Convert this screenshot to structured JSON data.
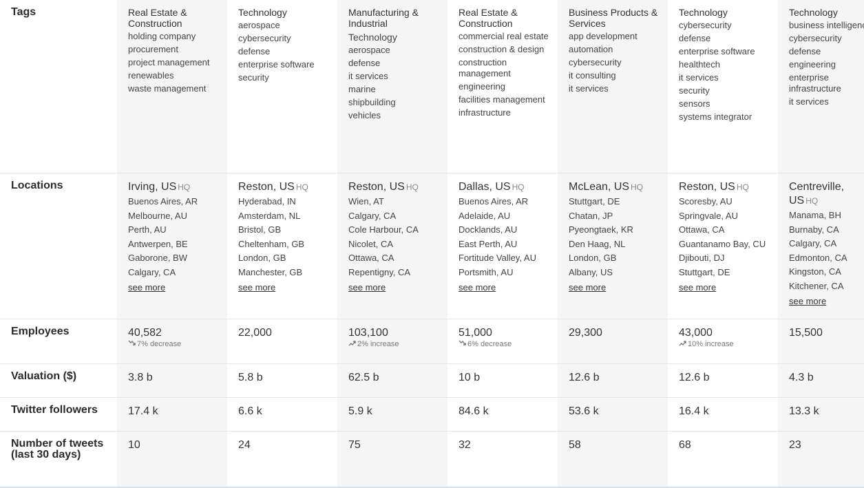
{
  "labels": {
    "tags": "Tags",
    "locations": "Locations",
    "employees": "Employees",
    "valuation": "Valuation ($)",
    "twitter": "Twitter followers",
    "tweets": "Number of tweets (last 30 days)"
  },
  "companies": [
    {
      "sector": "Real Estate & Construction",
      "tags": [
        "holding company",
        "procurement",
        "project management",
        "renewables",
        "waste management"
      ],
      "hq": "Irving, US",
      "hq_badge": "HQ",
      "locations": [
        "Buenos Aires, AR",
        "Melbourne, AU",
        "Perth, AU",
        "Antwerpen, BE",
        "Gaborone, BW",
        "Calgary, CA"
      ],
      "see_more": "see more",
      "employees": "40,582",
      "employees_trend": "7% decrease",
      "trend_dir": "down",
      "valuation": "3.8 b",
      "twitter": "17.4 k",
      "tweets": "10"
    },
    {
      "sector": "Technology",
      "tags": [
        "aerospace",
        "cybersecurity",
        "defense",
        "enterprise software",
        "security"
      ],
      "hq": "Reston, US",
      "hq_badge": "HQ",
      "locations": [
        "Hyderabad, IN",
        "Amsterdam, NL",
        "Bristol, GB",
        "Cheltenham, GB",
        "London, GB",
        "Manchester, GB"
      ],
      "see_more": "see more",
      "employees": "22,000",
      "employees_trend": "",
      "trend_dir": "",
      "valuation": "5.8 b",
      "twitter": "6.6 k",
      "tweets": "24"
    },
    {
      "sector": "Manufacturing & Industrial",
      "tags": [
        "Technology",
        "aerospace",
        "defense",
        "it services",
        "marine",
        "shipbuilding",
        "vehicles"
      ],
      "hq": "Reston, US",
      "hq_badge": "HQ",
      "locations": [
        "Wien, AT",
        "Calgary, CA",
        "Cole Harbour, CA",
        "Nicolet, CA",
        "Ottawa, CA",
        "Repentigny, CA"
      ],
      "see_more": "see more",
      "employees": "103,100",
      "employees_trend": "2% increase",
      "trend_dir": "up",
      "valuation": "62.5 b",
      "twitter": "5.9 k",
      "tweets": "75"
    },
    {
      "sector": "Real Estate & Construction",
      "tags": [
        "commercial real estate",
        "construction & design",
        "construction management",
        "engineering",
        "facilities management",
        "infrastructure"
      ],
      "hq": "Dallas, US",
      "hq_badge": "HQ",
      "locations": [
        "Buenos Aires, AR",
        "Adelaide, AU",
        "Docklands, AU",
        "East Perth, AU",
        "Fortitude Valley, AU",
        "Portsmith, AU"
      ],
      "see_more": "see more",
      "employees": "51,000",
      "employees_trend": "6% decrease",
      "trend_dir": "down",
      "valuation": "10 b",
      "twitter": "84.6 k",
      "tweets": "32"
    },
    {
      "sector": "Business Products & Services",
      "tags": [
        "app development",
        "automation",
        "cybersecurity",
        "it consulting",
        "it services"
      ],
      "hq": "McLean, US",
      "hq_badge": "HQ",
      "locations": [
        "Stuttgart, DE",
        "Chatan, JP",
        "Pyeongtaek, KR",
        "Den Haag, NL",
        "London, GB",
        "Albany, US"
      ],
      "see_more": "see more",
      "employees": "29,300",
      "employees_trend": "",
      "trend_dir": "",
      "valuation": "12.6 b",
      "twitter": "53.6 k",
      "tweets": "58"
    },
    {
      "sector": "Technology",
      "tags": [
        "cybersecurity",
        "defense",
        "enterprise software",
        "healthtech",
        "it services",
        "security",
        "sensors",
        "systems integrator"
      ],
      "hq": "Reston, US",
      "hq_badge": "HQ",
      "locations": [
        "Scoresby, AU",
        "Springvale, AU",
        "Ottawa, CA",
        "Guantanamo Bay, CU",
        "Djibouti, DJ",
        "Stuttgart, DE"
      ],
      "see_more": "see more",
      "employees": "43,000",
      "employees_trend": "10% increase",
      "trend_dir": "up",
      "valuation": "12.6 b",
      "twitter": "16.4 k",
      "tweets": "68"
    },
    {
      "sector": "Technology",
      "tags": [
        "business intelligence",
        "cybersecurity",
        "defense",
        "engineering",
        "enterprise infrastructure",
        "it services"
      ],
      "hq": "Centreville, US",
      "hq_badge": "HQ",
      "locations": [
        "Manama, BH",
        "Burnaby, CA",
        "Calgary, CA",
        "Edmonton, CA",
        "Kingston, CA",
        "Kitchener, CA"
      ],
      "see_more": "see more",
      "employees": "15,500",
      "employees_trend": "",
      "trend_dir": "",
      "valuation": "4.3 b",
      "twitter": "13.3 k",
      "tweets": "23"
    }
  ]
}
